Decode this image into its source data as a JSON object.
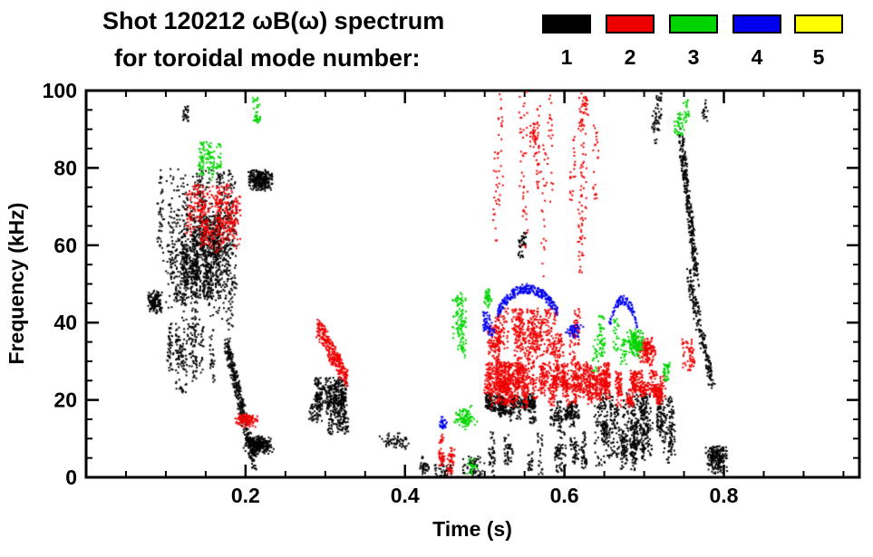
{
  "title": {
    "line1": "Shot 120212 ωB(ω) spectrum",
    "line2": "for toroidal mode number:"
  },
  "legend": {
    "entries": [
      {
        "label": "1",
        "color": "#000000"
      },
      {
        "label": "2",
        "color": "#ee0000"
      },
      {
        "label": "3",
        "color": "#00d400"
      },
      {
        "label": "4",
        "color": "#0000ee"
      },
      {
        "label": "5",
        "color": "#ffff00"
      }
    ]
  },
  "chart_data": {
    "type": "scatter",
    "title": "Shot 120212 ωB(ω) spectrum for toroidal mode number: 1 2 3 4 5",
    "xlabel": "Time (s)",
    "ylabel": "Frequency (kHz)",
    "xlim": [
      0,
      0.97
    ],
    "ylim": [
      0,
      100
    ],
    "grid": false,
    "legend_position": "top-right",
    "x_major_ticks": [
      {
        "v": 0.2,
        "label": "0.2"
      },
      {
        "v": 0.4,
        "label": "0.4"
      },
      {
        "v": 0.6,
        "label": "0.6"
      },
      {
        "v": 0.8,
        "label": "0.8"
      }
    ],
    "x_minor_step": 0.05,
    "y_major_ticks": [
      {
        "v": 0,
        "label": "0"
      },
      {
        "v": 20,
        "label": "20"
      },
      {
        "v": 40,
        "label": "40"
      },
      {
        "v": 60,
        "label": "60"
      },
      {
        "v": 80,
        "label": "80"
      },
      {
        "v": 100,
        "label": "100"
      }
    ],
    "y_minor_step": 5,
    "series": [
      {
        "name": "1",
        "color": "#000000",
        "clusters": [
          {
            "t": [
              0.075,
              0.095
            ],
            "f": [
              42,
              49
            ],
            "n": 150,
            "style": "blob"
          },
          {
            "t": [
              0.09,
              0.185
            ],
            "f": [
              33,
              80
            ],
            "n": 900,
            "style": "vstreaks"
          },
          {
            "t": [
              0.115,
              0.175
            ],
            "f": [
              45,
              68
            ],
            "n": 700,
            "style": "vstreaks"
          },
          {
            "t": [
              0.1,
              0.16
            ],
            "f": [
              20,
              40
            ],
            "n": 250,
            "style": "vstreaks"
          },
          {
            "t": [
              0.175,
              0.21
            ],
            "f": [
              4,
              35
            ],
            "n": 350,
            "style": "diag"
          },
          {
            "t": [
              0.2,
              0.235
            ],
            "f": [
              74,
              80
            ],
            "n": 260,
            "style": "blob"
          },
          {
            "t": [
              0.195,
              0.235
            ],
            "f": [
              6,
              11
            ],
            "n": 260,
            "style": "blob"
          },
          {
            "t": [
              0.115,
              0.125
            ],
            "f": [
              92,
              100
            ],
            "n": 25,
            "style": "vstreaks"
          },
          {
            "t": [
              0.28,
              0.325
            ],
            "f": [
              11,
              26
            ],
            "n": 550,
            "style": "vstreaks"
          },
          {
            "t": [
              0.365,
              0.405
            ],
            "f": [
              7,
              12
            ],
            "n": 60,
            "style": "blob"
          },
          {
            "t": [
              0.415,
              0.43
            ],
            "f": [
              0,
              6
            ],
            "n": 40,
            "style": "blob"
          },
          {
            "t": [
              0.435,
              0.46
            ],
            "f": [
              0,
              4
            ],
            "n": 40,
            "style": "blob"
          },
          {
            "t": [
              0.47,
              0.5
            ],
            "f": [
              0,
              6
            ],
            "n": 60,
            "style": "blob"
          },
          {
            "t": [
              0.5,
              0.565
            ],
            "f": [
              14,
              22
            ],
            "n": 450,
            "style": "vstreaks"
          },
          {
            "t": [
              0.5,
              0.63
            ],
            "f": [
              0,
              12
            ],
            "n": 280,
            "style": "vstreaks"
          },
          {
            "t": [
              0.565,
              0.635
            ],
            "f": [
              12,
              20
            ],
            "n": 180,
            "style": "vstreaks"
          },
          {
            "t": [
              0.525,
              0.555
            ],
            "f": [
              55,
              66
            ],
            "n": 40,
            "style": "vstreaks"
          },
          {
            "t": [
              0.63,
              0.735
            ],
            "f": [
              2,
              22
            ],
            "n": 900,
            "style": "vstreaks"
          },
          {
            "t": [
              0.705,
              0.72
            ],
            "f": [
              84,
              100
            ],
            "n": 60,
            "style": "vstreaks"
          },
          {
            "t": [
              0.745,
              0.765
            ],
            "f": [
              52,
              88
            ],
            "n": 300,
            "style": "diag"
          },
          {
            "t": [
              0.755,
              0.785
            ],
            "f": [
              24,
              52
            ],
            "n": 200,
            "style": "diag"
          },
          {
            "t": [
              0.775,
              0.805
            ],
            "f": [
              1,
              9
            ],
            "n": 220,
            "style": "blob"
          },
          {
            "t": [
              0.77,
              0.78
            ],
            "f": [
              92,
              99
            ],
            "n": 20,
            "style": "blob"
          }
        ]
      },
      {
        "name": "2",
        "color": "#ee0000",
        "clusters": [
          {
            "t": [
              0.125,
              0.19
            ],
            "f": [
              58,
              76
            ],
            "n": 450,
            "style": "vstreaks"
          },
          {
            "t": [
              0.185,
              0.215
            ],
            "f": [
              13,
              17
            ],
            "n": 120,
            "style": "blob"
          },
          {
            "t": [
              0.29,
              0.325
            ],
            "f": [
              26,
              39
            ],
            "n": 280,
            "style": "diag"
          },
          {
            "t": [
              0.43,
              0.465
            ],
            "f": [
              0,
              12
            ],
            "n": 90,
            "style": "vstreaks"
          },
          {
            "t": [
              0.5,
              0.655
            ],
            "f": [
              18,
              30
            ],
            "n": 1600,
            "style": "vstreaks"
          },
          {
            "t": [
              0.5,
              0.64
            ],
            "f": [
              28,
              44
            ],
            "n": 700,
            "style": "vstreaks"
          },
          {
            "t": [
              0.505,
              0.645
            ],
            "f": [
              45,
              100
            ],
            "n": 260,
            "style": "vstreaks"
          },
          {
            "t": [
              0.555,
              0.575
            ],
            "f": [
              78,
              92
            ],
            "n": 40,
            "style": "vstreaks"
          },
          {
            "t": [
              0.615,
              0.63
            ],
            "f": [
              85,
              100
            ],
            "n": 40,
            "style": "vstreaks"
          },
          {
            "t": [
              0.655,
              0.725
            ],
            "f": [
              18,
              28
            ],
            "n": 450,
            "style": "vstreaks"
          },
          {
            "t": [
              0.69,
              0.715
            ],
            "f": [
              29,
              37
            ],
            "n": 150,
            "style": "blob"
          },
          {
            "t": [
              0.745,
              0.765
            ],
            "f": [
              26,
              36
            ],
            "n": 60,
            "style": "vstreaks"
          }
        ]
      },
      {
        "name": "3",
        "color": "#00d400",
        "clusters": [
          {
            "t": [
              0.115,
              0.175
            ],
            "f": [
              72,
              87
            ],
            "n": 120,
            "style": "vstreaks"
          },
          {
            "t": [
              0.205,
              0.215
            ],
            "f": [
              91,
              99
            ],
            "n": 35,
            "style": "vstreaks"
          },
          {
            "t": [
              0.46,
              0.475
            ],
            "f": [
              28,
              48
            ],
            "n": 120,
            "style": "vstreaks"
          },
          {
            "t": [
              0.46,
              0.49
            ],
            "f": [
              12,
              19
            ],
            "n": 90,
            "style": "blob"
          },
          {
            "t": [
              0.475,
              0.49
            ],
            "f": [
              0,
              6
            ],
            "n": 25,
            "style": "blob"
          },
          {
            "t": [
              0.497,
              0.508
            ],
            "f": [
              43,
              50
            ],
            "n": 40,
            "style": "blob"
          },
          {
            "t": [
              0.63,
              0.675
            ],
            "f": [
              27,
              42
            ],
            "n": 120,
            "style": "vstreaks"
          },
          {
            "t": [
              0.675,
              0.7
            ],
            "f": [
              31,
              39
            ],
            "n": 160,
            "style": "blob"
          },
          {
            "t": [
              0.715,
              0.735
            ],
            "f": [
              23,
              30
            ],
            "n": 40,
            "style": "vstreaks"
          },
          {
            "t": [
              0.74,
              0.76
            ],
            "f": [
              88,
              98
            ],
            "n": 60,
            "style": "vstreaks"
          }
        ]
      },
      {
        "name": "4",
        "color": "#0000ee",
        "clusters": [
          {
            "t": [
              0.44,
              0.452
            ],
            "f": [
              12,
              16
            ],
            "n": 30,
            "style": "blob"
          },
          {
            "t": [
              0.495,
              0.51
            ],
            "f": [
              36,
              43
            ],
            "n": 60,
            "style": "vstreaks"
          },
          {
            "t": [
              0.515,
              0.59
            ],
            "f": [
              43,
              49
            ],
            "n": 260,
            "style": "arc"
          },
          {
            "t": [
              0.6,
              0.625
            ],
            "f": [
              36,
              40
            ],
            "n": 50,
            "style": "blob"
          },
          {
            "t": [
              0.655,
              0.69
            ],
            "f": [
              40,
              46
            ],
            "n": 90,
            "style": "arc"
          }
        ]
      },
      {
        "name": "5",
        "color": "#ffff00",
        "clusters": []
      }
    ]
  }
}
